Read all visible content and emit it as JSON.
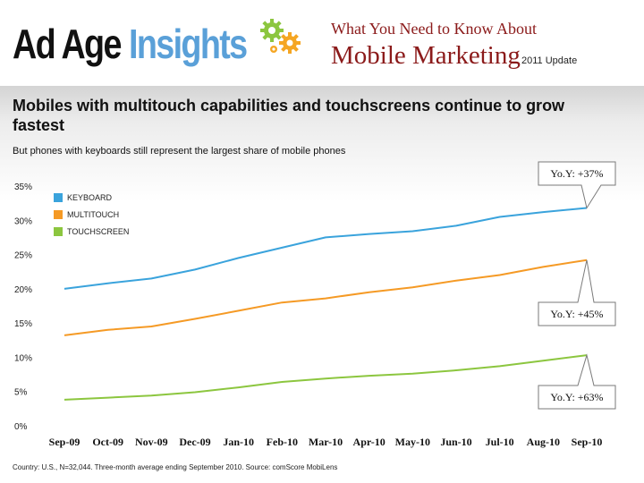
{
  "header": {
    "brand_part1": "Ad Age",
    "brand_part2": "Insights",
    "headline_top": "What You Need to Know About",
    "headline_main": "Mobile Marketing",
    "headline_update": "2011 Update"
  },
  "colors": {
    "keyboard": "#3aa3dc",
    "multitouch": "#f59a25",
    "touchscreen": "#8cc63f",
    "headline": "#8b1a1a",
    "insights": "#5aa0d8"
  },
  "chart_data": {
    "type": "line",
    "title": "Mobiles with multitouch capabilities and touchscreens continue to grow fastest",
    "subtitle": "But phones with keyboards still represent the largest share of mobile phones",
    "categories": [
      "Sep-09",
      "Oct-09",
      "Nov-09",
      "Dec-09",
      "Jan-10",
      "Feb-10",
      "Mar-10",
      "Apr-10",
      "May-10",
      "Jun-10",
      "Jul-10",
      "Aug-10",
      "Sep-10"
    ],
    "series": [
      {
        "name": "KEYBOARD",
        "values": [
          20.0,
          20.8,
          21.5,
          22.8,
          24.5,
          26.0,
          27.5,
          28.0,
          28.4,
          29.2,
          30.5,
          31.2,
          31.8
        ]
      },
      {
        "name": "MULTITOUCH",
        "values": [
          13.2,
          14.0,
          14.5,
          15.6,
          16.8,
          18.0,
          18.6,
          19.5,
          20.2,
          21.2,
          22.0,
          23.2,
          24.2
        ]
      },
      {
        "name": "TOUCHSCREEN",
        "values": [
          3.8,
          4.1,
          4.4,
          4.9,
          5.6,
          6.4,
          6.9,
          7.3,
          7.6,
          8.1,
          8.7,
          9.5,
          10.3
        ]
      }
    ],
    "ylim": [
      0,
      35
    ],
    "yticks": [
      "0%",
      "5%",
      "10%",
      "15%",
      "20%",
      "25%",
      "30%",
      "35%"
    ],
    "legend_position": "top-left",
    "annotations": [
      {
        "series": "KEYBOARD",
        "text": "Yo.Y: +37%"
      },
      {
        "series": "MULTITOUCH",
        "text": "Yo.Y: +45%"
      },
      {
        "series": "TOUCHSCREEN",
        "text": "Yo.Y: +63%"
      }
    ],
    "source": "Country: U.S., N=32,044. Three-month average ending September 2010. Source: comScore MobiLens"
  }
}
